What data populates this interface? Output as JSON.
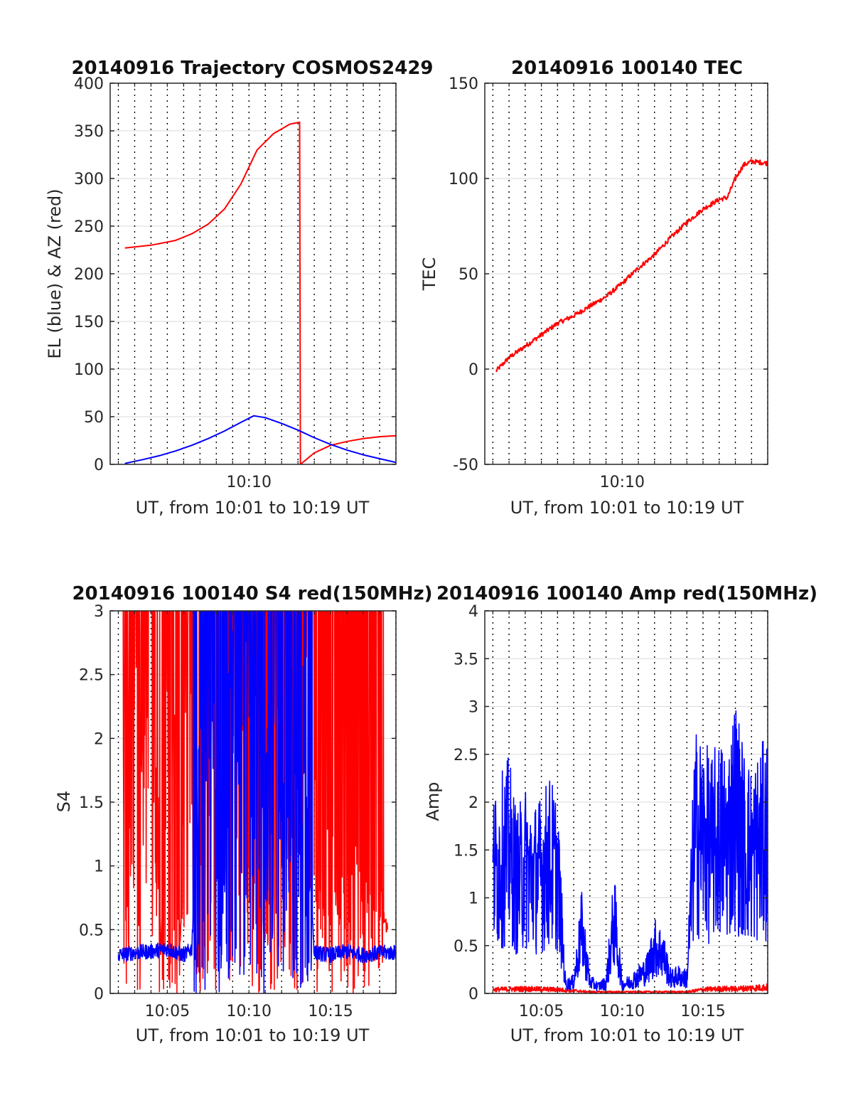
{
  "figure": {
    "time_axis": {
      "start_min": 1.5,
      "end_min": 19.0,
      "hour": 10
    },
    "colors": {
      "az": "#ff0000",
      "el": "#0000ff",
      "grid_h": "#d9d9d9",
      "grid_v": "#000000",
      "axes": "#262626"
    }
  },
  "chart_data": [
    {
      "id": "trajectory",
      "type": "line",
      "title": "20140916 Trajectory COSMOS2429",
      "xlabel": "UT, from 10:01 to 10:19 UT",
      "ylabel": "EL (blue) & AZ (red)",
      "xlim": [
        1.5,
        19.0
      ],
      "ylim": [
        0,
        400
      ],
      "yticks": [
        0,
        50,
        100,
        150,
        200,
        250,
        300,
        350,
        400
      ],
      "ytick_labels": [
        "0",
        "50",
        "100",
        "150",
        "200",
        "250",
        "300",
        "350",
        "400"
      ],
      "xticks": [
        10
      ],
      "xtick_labels": [
        "10:10"
      ],
      "series": [
        {
          "color": "#ff0000",
          "x": [
            2.4,
            4,
            5.5,
            6.5,
            7.5,
            8.5,
            9.5,
            10.5,
            11.5,
            12.5,
            13.1,
            13.15,
            14,
            15,
            16,
            17,
            18,
            19
          ],
          "y": [
            227,
            230,
            235,
            242,
            252,
            268,
            294,
            330,
            347,
            357,
            359,
            0,
            12,
            20,
            24,
            27,
            29,
            30
          ]
        },
        {
          "color": "#0000ff",
          "x": [
            2.4,
            3.5,
            4.5,
            5.5,
            6.5,
            7.5,
            8.5,
            9.5,
            10.3,
            11,
            12,
            13,
            14,
            15,
            16,
            17,
            18,
            19
          ],
          "y": [
            1,
            5,
            9,
            14,
            20,
            27,
            35,
            44,
            51,
            49,
            43,
            36,
            28,
            21,
            15,
            10,
            6,
            2
          ]
        }
      ]
    },
    {
      "id": "tec",
      "type": "line",
      "title": "20140916 100140 TEC",
      "xlabel": "UT, from 10:01 to 10:19 UT",
      "ylabel": "TEC",
      "xlim": [
        1.5,
        19.0
      ],
      "ylim": [
        -50,
        150
      ],
      "yticks": [
        -50,
        0,
        50,
        100,
        150
      ],
      "ytick_labels": [
        "-50",
        "0",
        "50",
        "100",
        "150"
      ],
      "xticks": [
        10
      ],
      "xtick_labels": [
        "10:10"
      ],
      "series": [
        {
          "color": "#ff0000",
          "x": [
            2.2,
            3,
            4,
            5,
            6,
            7,
            8,
            9,
            10,
            11,
            12,
            13,
            14,
            15,
            16,
            16.5,
            17,
            17.5,
            18,
            19
          ],
          "y": [
            -1,
            6,
            12,
            18,
            24,
            28,
            33,
            38,
            45,
            53,
            60,
            69,
            77,
            84,
            89,
            90,
            100,
            107,
            109,
            108
          ]
        }
      ]
    },
    {
      "id": "s4",
      "type": "line",
      "title": "20140916 100140 S4 red(150MHz)",
      "xlabel": "UT, from 10:01 to 10:19 UT",
      "ylabel": "S4",
      "xlim": [
        1.5,
        19.0
      ],
      "ylim": [
        0,
        3
      ],
      "yticks": [
        0,
        0.5,
        1,
        1.5,
        2,
        2.5,
        3
      ],
      "ytick_labels": [
        "0",
        "0.5",
        "1",
        "1.5",
        "2",
        "2.5",
        "3"
      ],
      "xticks": [
        5,
        10,
        15
      ],
      "xtick_labels": [
        "10:05",
        "10:10",
        "10:15"
      ],
      "series": [
        {
          "color": "#ff0000",
          "x": [
            2.2,
            2.6,
            3,
            3.4,
            3.8,
            4.2,
            4.6,
            5.2,
            5.8,
            6.4,
            6.8,
            7.5,
            8.5,
            9.5,
            10.5,
            11.5,
            12.2,
            12.8,
            13.3,
            13.8,
            14.5,
            15.5,
            16.5,
            17.5,
            18.5
          ],
          "y": [
            2.4,
            2.1,
            2.7,
            1.9,
            2.6,
            2.9,
            0.3,
            2.8,
            0.4,
            3.0,
            0.2,
            2.7,
            2.5,
            1.8,
            2.2,
            1.5,
            2.4,
            0.8,
            2.6,
            2.2,
            1.5,
            0.6,
            1.0,
            0.9,
            0.5
          ]
        },
        {
          "color": "#0000ff",
          "x": [
            2,
            3,
            4,
            5,
            6,
            6.5,
            7.2,
            7.6,
            8.2,
            8.6,
            9.2,
            9.6,
            10.2,
            10.8,
            11.4,
            12,
            12.6,
            13.2,
            14,
            15,
            16,
            17,
            18,
            19
          ],
          "y": [
            0.3,
            0.32,
            0.33,
            0.35,
            0.3,
            0.35,
            2.8,
            2.3,
            0.6,
            2.4,
            2.0,
            2.6,
            1.9,
            1.3,
            2.0,
            1.5,
            0.9,
            2.2,
            0.32,
            0.3,
            0.33,
            0.3,
            0.32,
            0.32
          ]
        }
      ]
    },
    {
      "id": "amp",
      "type": "line",
      "title": "20140916 100140 Amp red(150MHz)",
      "xlabel": "UT, from 10:01 to 10:19 UT",
      "ylabel": "Amp",
      "xlim": [
        1.5,
        19.0
      ],
      "ylim": [
        0,
        4
      ],
      "yticks": [
        0,
        0.5,
        1,
        1.5,
        2,
        2.5,
        3,
        3.5,
        4
      ],
      "ytick_labels": [
        "0",
        "0.5",
        "1",
        "1.5",
        "2",
        "2.5",
        "3",
        "3.5",
        "4"
      ],
      "xticks": [
        5,
        10,
        15
      ],
      "xtick_labels": [
        "10:05",
        "10:10",
        "10:15"
      ],
      "series": [
        {
          "color": "#ff0000",
          "x": [
            2,
            4,
            6,
            8,
            10,
            12,
            14,
            15,
            16,
            17,
            18,
            19
          ],
          "y": [
            0.05,
            0.06,
            0.05,
            0.02,
            0.02,
            0.02,
            0.02,
            0.05,
            0.06,
            0.06,
            0.07,
            0.08
          ]
        },
        {
          "color": "#0000ff",
          "x": [
            2,
            2.5,
            3,
            3.5,
            4,
            4.5,
            5,
            5.5,
            6,
            6.5,
            7,
            7.5,
            8,
            8.5,
            9,
            9.5,
            10,
            10.5,
            11,
            11.5,
            12,
            12.5,
            13,
            13.5,
            14,
            14.5,
            15,
            15.5,
            16,
            16.5,
            17,
            17.5,
            18,
            18.5,
            19
          ],
          "y": [
            2.1,
            2.3,
            2.5,
            1.9,
            2.2,
            2.0,
            2.1,
            2.3,
            2.1,
            0.15,
            0.2,
            1.1,
            0.2,
            0.12,
            0.18,
            1.3,
            0.15,
            0.2,
            0.3,
            0.4,
            0.8,
            0.7,
            0.25,
            0.3,
            0.25,
            2.8,
            2.7,
            2.5,
            2.7,
            2.6,
            3.2,
            2.6,
            2.4,
            2.6,
            2.7
          ]
        }
      ]
    }
  ]
}
